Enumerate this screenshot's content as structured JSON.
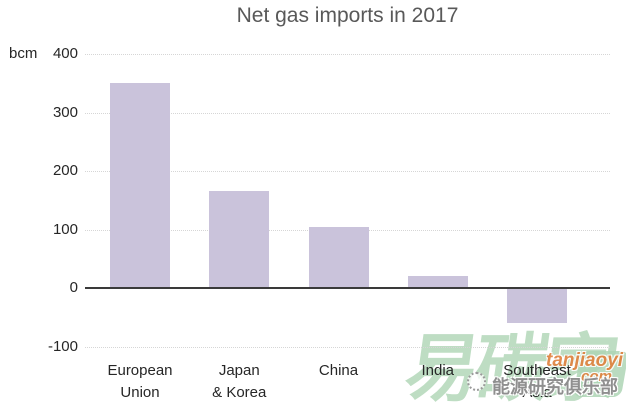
{
  "title": "Net gas imports in 2017",
  "chart_data": {
    "type": "bar",
    "title": "Net gas imports in 2017",
    "ylabel": "bcm",
    "xlabel": "",
    "categories": [
      "European\nUnion",
      "Japan\n& Korea",
      "China",
      "India",
      "Southeast\nAsia"
    ],
    "values": [
      350,
      165,
      105,
      20,
      -60
    ],
    "ylim": [
      -100,
      400
    ],
    "yticks": [
      400,
      300,
      200,
      100,
      0,
      -100
    ],
    "grid": "horizontal dotted, solid axis line at 0",
    "legend": "none",
    "bar_color": "#cac3db"
  },
  "colors": {
    "bar": "#cac3db",
    "title_text": "#595959",
    "axis_text": "#262626",
    "gridline": "#d6d6d6",
    "zero_line": "#3a3a3a",
    "watermark_green": "#b3d8b9",
    "watermark_orange": "#e0813c",
    "watermark_gray": "#8f8f8f"
  },
  "watermark": {
    "brand_cn": "易碳家",
    "club_cn": "能源研究俱乐部",
    "domain_name": "tanjiaoyi",
    "domain_tld": ".com"
  }
}
